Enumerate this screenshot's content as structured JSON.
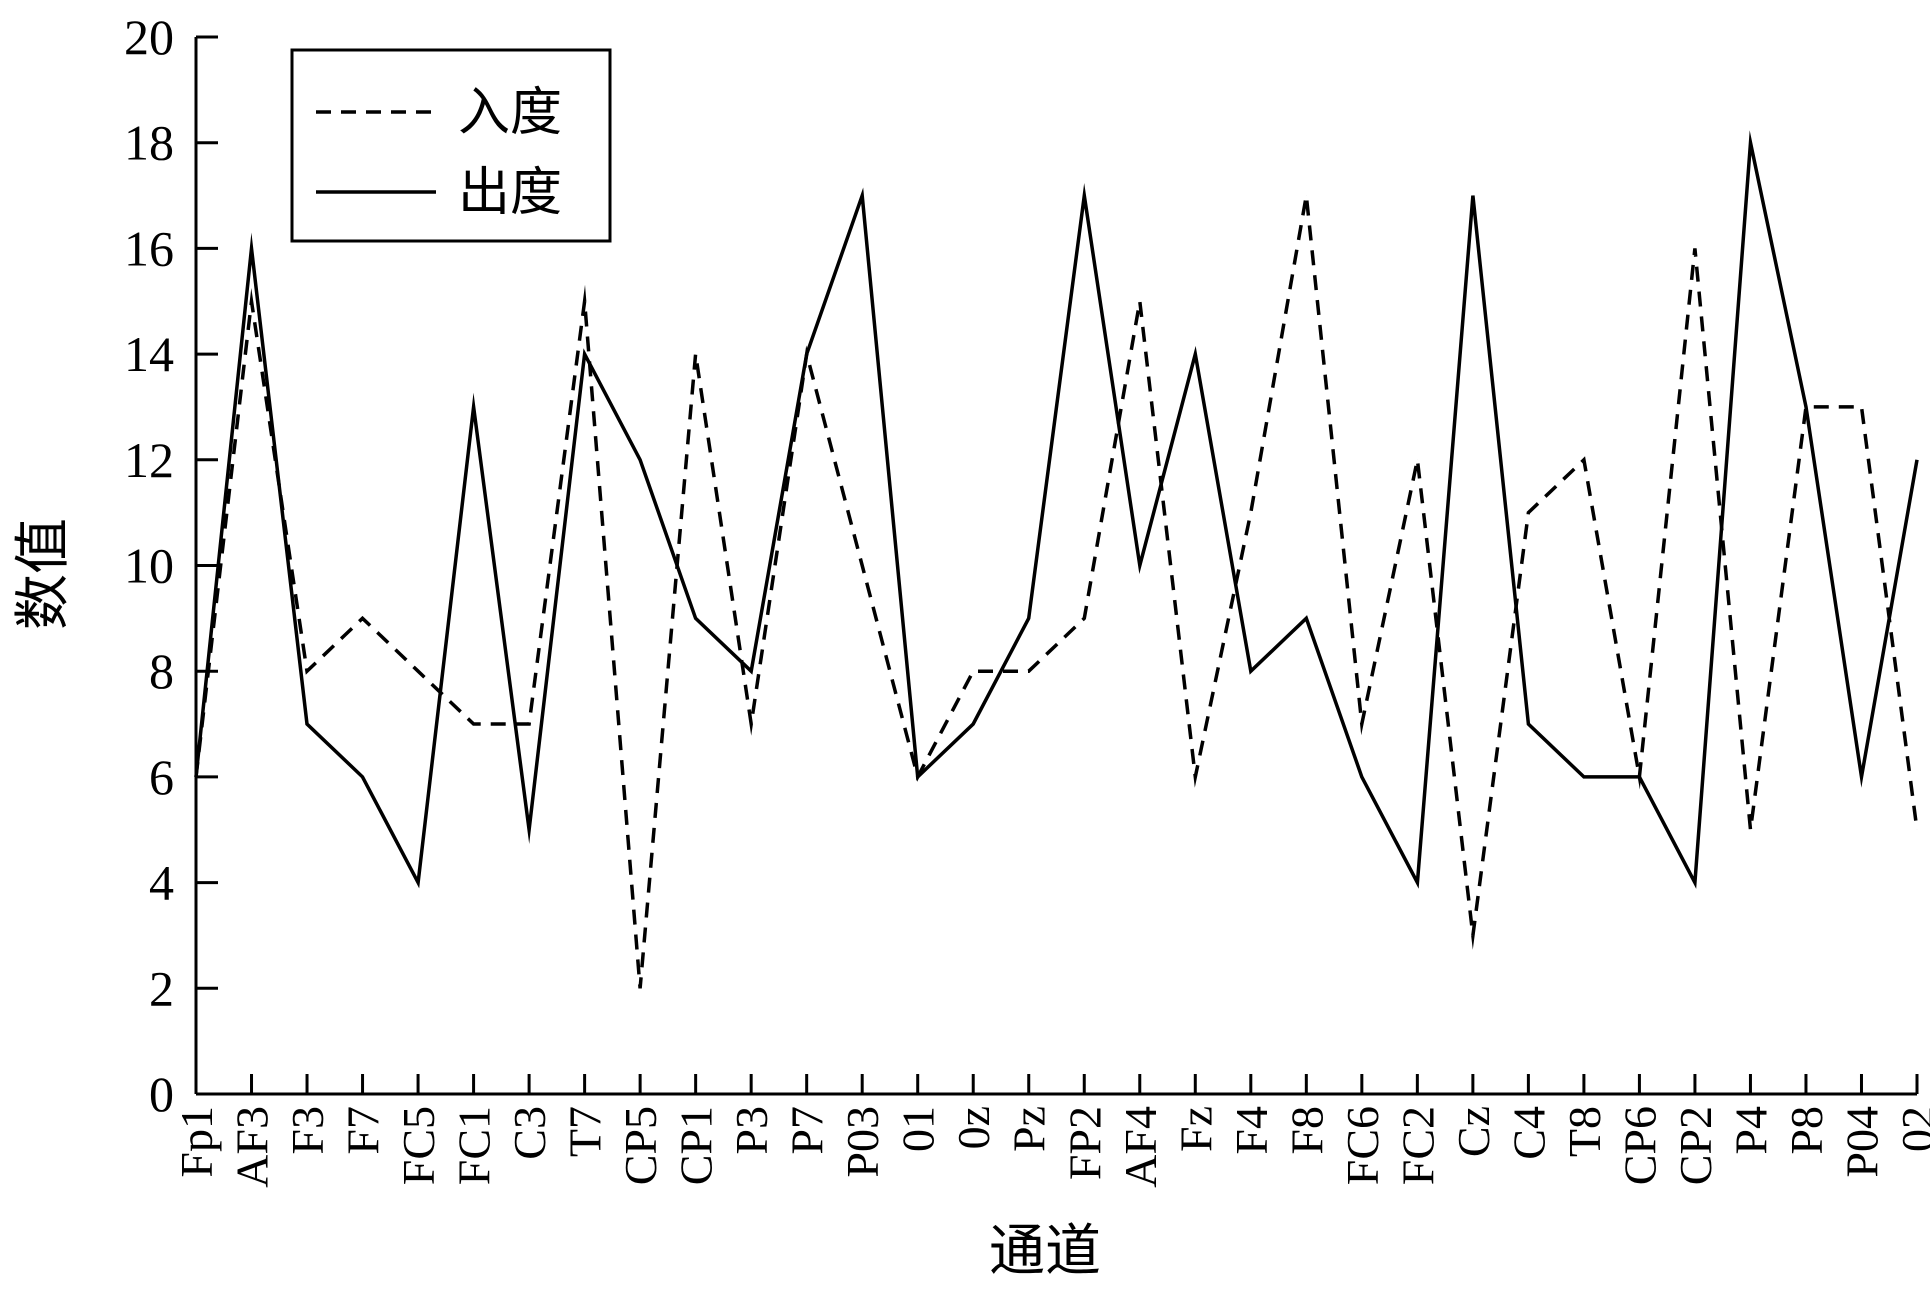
{
  "chart_data": {
    "type": "line",
    "title": "",
    "xlabel": "通道",
    "ylabel": "数值",
    "ylim": [
      0,
      20
    ],
    "yticks": [
      0,
      2,
      4,
      6,
      8,
      10,
      12,
      14,
      16,
      18,
      20
    ],
    "yticks_text": [
      "0",
      "2",
      "4",
      "6",
      "8",
      "10",
      "12",
      "14",
      "16",
      "18",
      "20"
    ],
    "grid": false,
    "legend_position": "top-left",
    "categories": [
      "Fp1",
      "AF3",
      "F3",
      "F7",
      "FC5",
      "FC1",
      "C3",
      "T7",
      "CP5",
      "CP1",
      "P3",
      "P7",
      "P03",
      "01",
      "0z",
      "Pz",
      "FP2",
      "AF4",
      "Fz",
      "F4",
      "F8",
      "FC6",
      "FC2",
      "Cz",
      "C4",
      "T8",
      "CP6",
      "CP2",
      "P4",
      "P8",
      "P04",
      "02"
    ],
    "series": [
      {
        "name": "入度",
        "style": "dashed",
        "color": "#000000",
        "values": [
          6,
          15,
          8,
          9,
          8,
          7,
          7,
          15,
          2,
          14,
          7,
          14,
          10,
          6,
          8,
          8,
          9,
          15,
          6,
          11,
          17,
          7,
          12,
          3,
          11,
          12,
          6,
          16,
          5,
          13,
          13,
          5
        ]
      },
      {
        "name": "出度",
        "style": "solid",
        "color": "#000000",
        "values": [
          6,
          16,
          7,
          6,
          4,
          13,
          5,
          14,
          12,
          9,
          8,
          14,
          17,
          6,
          7,
          9,
          17,
          10,
          14,
          8,
          9,
          6,
          4,
          17,
          7,
          6,
          6,
          4,
          18,
          13,
          6,
          12
        ]
      }
    ]
  }
}
